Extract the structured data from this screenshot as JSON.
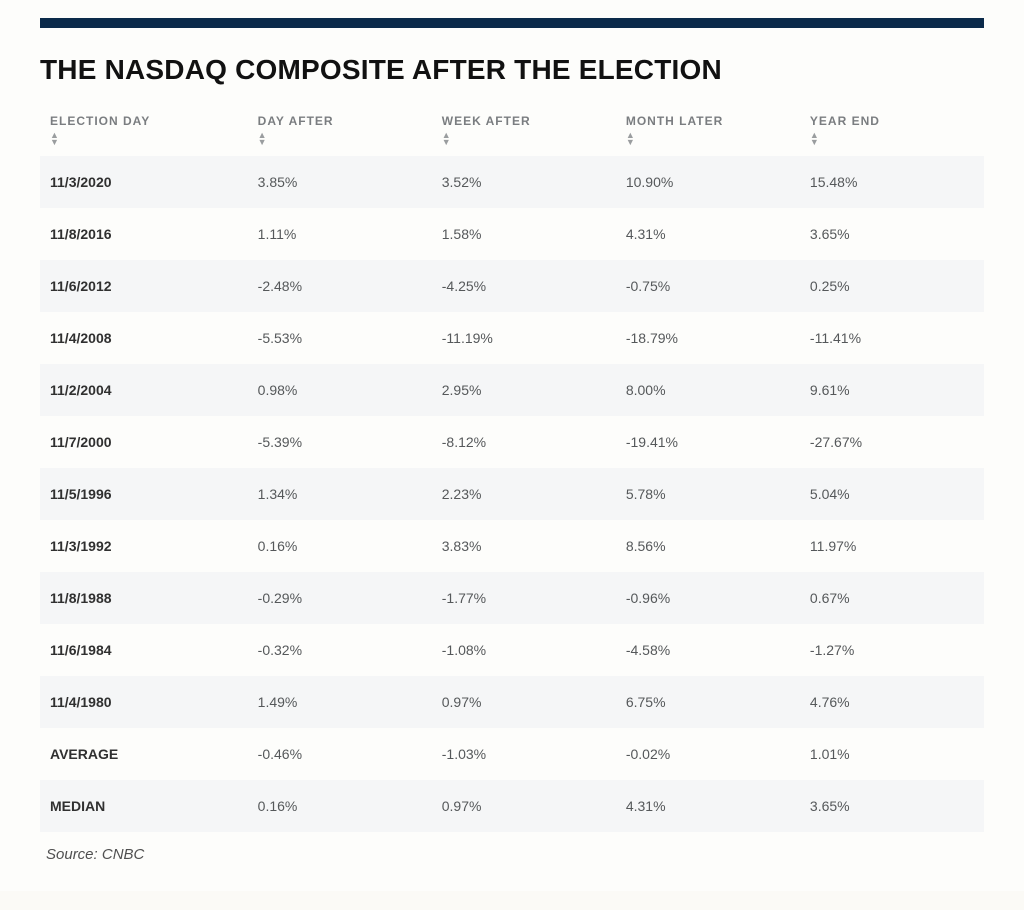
{
  "layout": {
    "top_bar_color": "#0b2a4a",
    "page_bg": "#fdfdfb",
    "alt_row_bg": "#f5f6f7",
    "header_text_color": "#7a7d80",
    "cell_text_color": "#55585a",
    "firstcol_text_color": "#303030",
    "title_fontsize": 28,
    "header_fontsize": 12,
    "cell_fontsize": 14
  },
  "title": "THE NASDAQ COMPOSITE AFTER THE ELECTION",
  "columns": [
    "ELECTION DAY",
    "DAY AFTER",
    "WEEK AFTER",
    "MONTH LATER",
    "YEAR END"
  ],
  "rows": [
    [
      "11/3/2020",
      "3.85%",
      "3.52%",
      "10.90%",
      "15.48%"
    ],
    [
      "11/8/2016",
      "1.11%",
      "1.58%",
      "4.31%",
      "3.65%"
    ],
    [
      "11/6/2012",
      "-2.48%",
      "-4.25%",
      "-0.75%",
      "0.25%"
    ],
    [
      "11/4/2008",
      "-5.53%",
      "-11.19%",
      "-18.79%",
      "-11.41%"
    ],
    [
      "11/2/2004",
      "0.98%",
      "2.95%",
      "8.00%",
      "9.61%"
    ],
    [
      "11/7/2000",
      "-5.39%",
      "-8.12%",
      "-19.41%",
      "-27.67%"
    ],
    [
      "11/5/1996",
      "1.34%",
      "2.23%",
      "5.78%",
      "5.04%"
    ],
    [
      "11/3/1992",
      "0.16%",
      "3.83%",
      "8.56%",
      "11.97%"
    ],
    [
      "11/8/1988",
      "-0.29%",
      "-1.77%",
      "-0.96%",
      "0.67%"
    ],
    [
      "11/6/1984",
      "-0.32%",
      "-1.08%",
      "-4.58%",
      "-1.27%"
    ],
    [
      "11/4/1980",
      "1.49%",
      "0.97%",
      "6.75%",
      "4.76%"
    ],
    [
      "AVERAGE",
      "-0.46%",
      "-1.03%",
      "-0.02%",
      "1.01%"
    ],
    [
      "MEDIAN",
      "0.16%",
      "0.97%",
      "4.31%",
      "3.65%"
    ]
  ],
  "source": "Source: CNBC"
}
